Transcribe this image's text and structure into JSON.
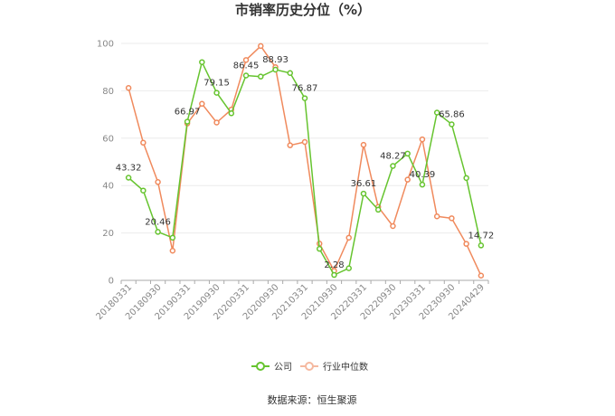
{
  "chart_data": {
    "type": "line",
    "title": "市销率历史分位（%）",
    "ylim": [
      0,
      100
    ],
    "yticks": [
      0,
      20,
      40,
      60,
      80,
      100
    ],
    "xtick_labels": [
      "20180331",
      "20180930",
      "20190331",
      "20190930",
      "20200331",
      "20200930",
      "20210331",
      "20210930",
      "20220331",
      "20220930",
      "20230331",
      "20230930",
      "20240429"
    ],
    "grid": true,
    "legend_position": "bottom",
    "series": [
      {
        "name": "公司",
        "color": "#66c42f",
        "values": [
          43.32,
          37.9,
          20.46,
          18.0,
          66.97,
          92.1,
          79.15,
          70.5,
          86.45,
          86.0,
          88.93,
          87.5,
          76.87,
          13.3,
          2.28,
          5.1,
          36.61,
          29.8,
          48.27,
          53.5,
          40.39,
          70.8,
          65.86,
          43.2,
          14.72
        ],
        "labels": {
          "0": "43.32",
          "2": "20.46",
          "4": "66.97",
          "6": "79.15",
          "8": "86.45",
          "10": "88.93",
          "12": "76.87",
          "14": "2.28",
          "16": "36.61",
          "18": "48.27",
          "20": "40.39",
          "22": "65.86",
          "24": "14.72"
        }
      },
      {
        "name": "行业中位数",
        "color": "#f08a5d",
        "values": [
          81.2,
          58.1,
          41.5,
          12.5,
          66.2,
          74.5,
          66.6,
          72.1,
          93.0,
          98.9,
          90.0,
          57.0,
          58.4,
          15.5,
          4.0,
          18.0,
          57.2,
          31.0,
          22.9,
          42.5,
          59.5,
          27.0,
          26.2,
          15.4,
          2.0
        ]
      }
    ]
  },
  "legend": {
    "company": "公司",
    "industry": "行业中位数"
  },
  "source": "数据来源：恒生聚源"
}
